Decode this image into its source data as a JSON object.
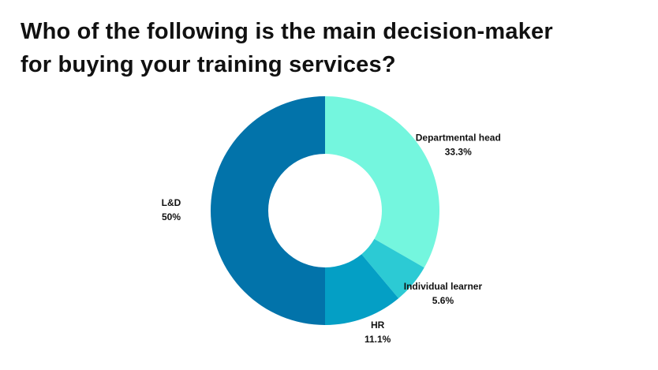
{
  "chart_data": {
    "type": "donut",
    "title": [
      "Who of the following is the main decision-maker",
      "for buying your training services?"
    ],
    "categories": [
      "Departmental head",
      "Individual learner",
      "HR",
      "L&D"
    ],
    "values": [
      33.3,
      5.6,
      11.1,
      50
    ],
    "value_labels": [
      "33.3%",
      "5.6%",
      "11.1%",
      "50%"
    ],
    "colors": [
      "#74f6de",
      "#2ccad4",
      "#049fc5",
      "#0273aa"
    ]
  }
}
